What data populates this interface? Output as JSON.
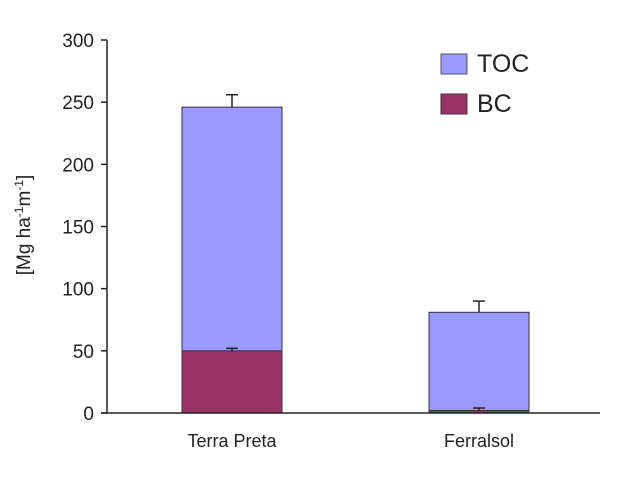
{
  "chart_data": {
    "type": "bar",
    "categories": [
      "Terra Preta",
      "Ferralsol"
    ],
    "series": [
      {
        "name": "TOC",
        "values": [
          246,
          81
        ],
        "error": [
          10,
          9
        ],
        "color": "#9999ff"
      },
      {
        "name": "BC",
        "values": [
          50,
          2
        ],
        "error": [
          2,
          2
        ],
        "color": "#993366"
      }
    ],
    "ylabel": "[Mg ha-1 m-1]",
    "ylabel_parts": {
      "a": "[Mg ha",
      "b": "-1",
      "c": "m",
      "d": "-1",
      "e": "]"
    },
    "ylim": [
      0,
      300
    ],
    "yticks": [
      0,
      50,
      100,
      150,
      200,
      250,
      300
    ],
    "grid": false,
    "legend_position": "top-right",
    "layout": "overlaid"
  }
}
